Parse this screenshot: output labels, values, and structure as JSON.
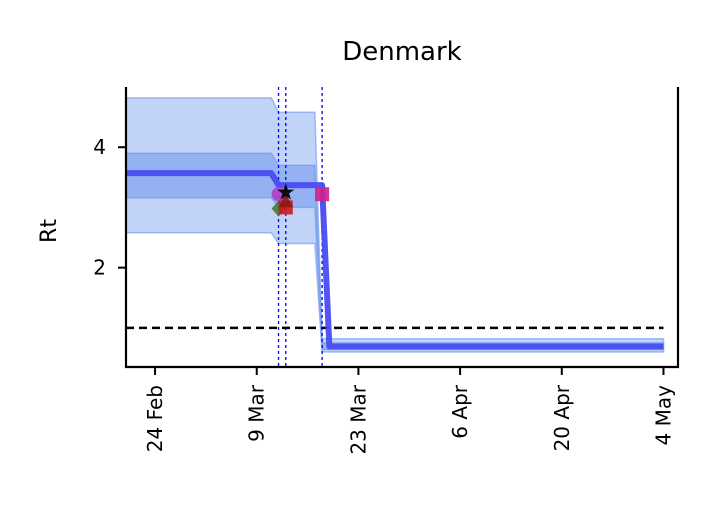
{
  "chart_data": {
    "type": "line",
    "title": "Denmark",
    "xlabel": "",
    "ylabel": "Rt",
    "x_axis": {
      "type": "date",
      "range": [
        "2020-02-20",
        "2020-05-06"
      ],
      "ticks": [
        {
          "date": "2020-02-24",
          "label": "24 Feb"
        },
        {
          "date": "2020-03-09",
          "label": "9 Mar"
        },
        {
          "date": "2020-03-23",
          "label": "23 Mar"
        },
        {
          "date": "2020-04-06",
          "label": "6 Apr"
        },
        {
          "date": "2020-04-20",
          "label": "20 Apr"
        },
        {
          "date": "2020-05-04",
          "label": "4 May"
        }
      ]
    },
    "y_axis": {
      "range": [
        0.35,
        5.0
      ],
      "ticks": [
        {
          "value": 2,
          "label": "2"
        },
        {
          "value": 4,
          "label": "4"
        }
      ]
    },
    "grid": false,
    "series": [
      {
        "role": "rt-median",
        "color": "#4a4cf0",
        "points": [
          {
            "x": "2020-02-20",
            "y": 3.57
          },
          {
            "x": "2020-03-11",
            "y": 3.57
          },
          {
            "x": "2020-03-12",
            "y": 3.37
          },
          {
            "x": "2020-03-18",
            "y": 3.37
          },
          {
            "x": "2020-03-19",
            "y": 0.69
          },
          {
            "x": "2020-05-04",
            "y": 0.69
          }
        ]
      }
    ],
    "bands": [
      {
        "role": "ci-95",
        "color": "#6d96ee",
        "opacity": 0.42,
        "points": [
          {
            "x": "2020-02-20",
            "lo": 2.58,
            "hi": 4.82
          },
          {
            "x": "2020-03-11",
            "lo": 2.58,
            "hi": 4.82
          },
          {
            "x": "2020-03-12",
            "lo": 2.4,
            "hi": 4.58
          },
          {
            "x": "2020-03-17",
            "lo": 2.4,
            "hi": 4.58
          },
          {
            "x": "2020-03-18",
            "lo": 0.6,
            "hi": 0.82
          },
          {
            "x": "2020-05-04",
            "lo": 0.6,
            "hi": 0.82
          }
        ]
      },
      {
        "role": "ci-50",
        "color": "#6d96ee",
        "opacity": 0.55,
        "points": [
          {
            "x": "2020-02-20",
            "lo": 3.16,
            "hi": 3.9
          },
          {
            "x": "2020-03-11",
            "lo": 3.16,
            "hi": 3.9
          },
          {
            "x": "2020-03-12",
            "lo": 3.0,
            "hi": 3.7
          },
          {
            "x": "2020-03-17",
            "lo": 3.0,
            "hi": 3.7
          },
          {
            "x": "2020-03-18",
            "lo": 0.64,
            "hi": 0.75
          },
          {
            "x": "2020-05-04",
            "lo": 0.64,
            "hi": 0.75
          }
        ]
      }
    ],
    "reference_line": {
      "y": 1.0,
      "style": "dashed",
      "color": "#000000",
      "x_from": "2020-02-20",
      "x_to": "2020-05-04"
    },
    "intervention_lines": [
      {
        "x": "2020-03-12",
        "color": "#0000ff",
        "style": "dashed"
      },
      {
        "x": "2020-03-13",
        "color": "#0000ff",
        "style": "dashed"
      },
      {
        "x": "2020-03-18",
        "color": "#0000ff",
        "style": "dashed"
      }
    ],
    "markers": [
      {
        "x": "2020-03-12",
        "y": 3.22,
        "shape": "circle",
        "color": "#b040c8"
      },
      {
        "x": "2020-03-12",
        "y": 2.98,
        "shape": "diamond",
        "color": "#4a7a2a"
      },
      {
        "x": "2020-03-13",
        "y": 3.0,
        "shape": "square",
        "color": "#cc1a1a"
      },
      {
        "x": "2020-03-13",
        "y": 3.12,
        "shape": "triangle",
        "color": "#8a1818"
      },
      {
        "x": "2020-03-13",
        "y": 3.25,
        "shape": "star",
        "color": "#000000"
      },
      {
        "x": "2020-03-18",
        "y": 3.22,
        "shape": "square",
        "color": "#d0208a"
      }
    ]
  }
}
